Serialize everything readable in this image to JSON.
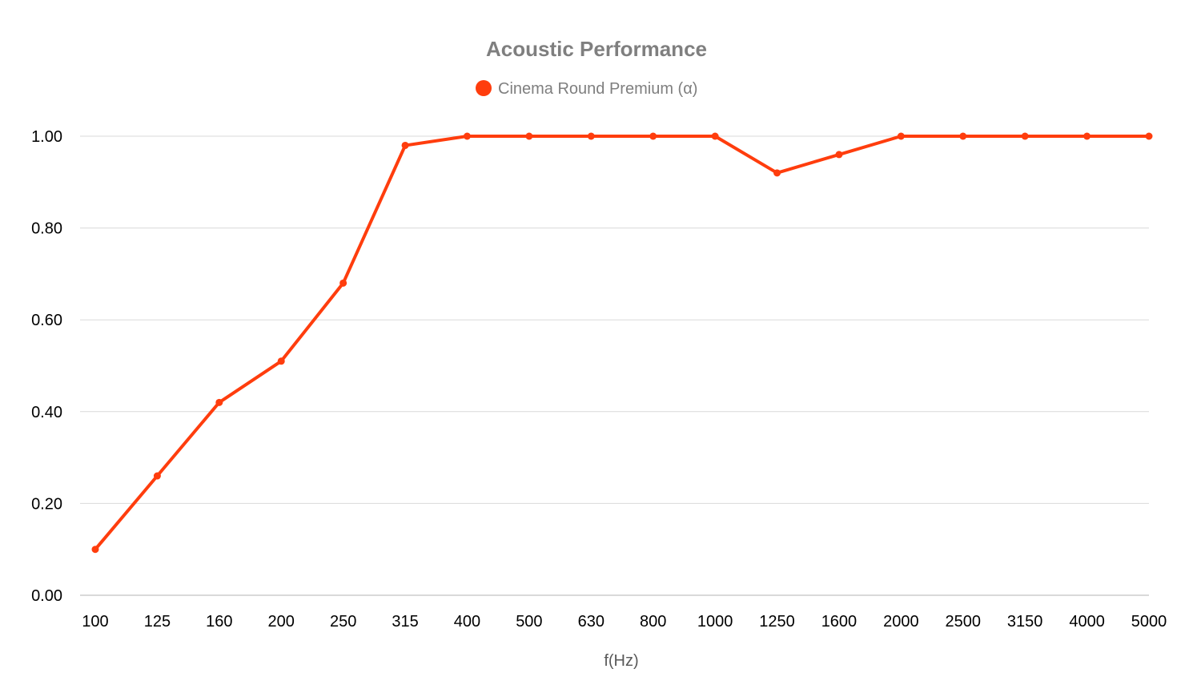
{
  "chart_data": {
    "type": "line",
    "title": "Acoustic Performance",
    "xlabel": "f(Hz)",
    "ylabel": "",
    "categories": [
      "100",
      "125",
      "160",
      "200",
      "250",
      "315",
      "400",
      "500",
      "630",
      "800",
      "1000",
      "1250",
      "1600",
      "2000",
      "2500",
      "3150",
      "4000",
      "5000"
    ],
    "series": [
      {
        "name": "Cinema Round Premium (α)",
        "color": "#ff3d0d",
        "values": [
          0.1,
          0.26,
          0.42,
          0.51,
          0.68,
          0.98,
          1.0,
          1.0,
          1.0,
          1.0,
          1.0,
          0.92,
          0.96,
          1.0,
          1.0,
          1.0,
          1.0,
          1.0
        ]
      }
    ],
    "y_ticks": [
      "0.00",
      "0.20",
      "0.40",
      "0.60",
      "0.80",
      "1.00"
    ],
    "ylim": [
      0,
      1.0
    ],
    "grid": true,
    "legend_position": "top-center"
  }
}
